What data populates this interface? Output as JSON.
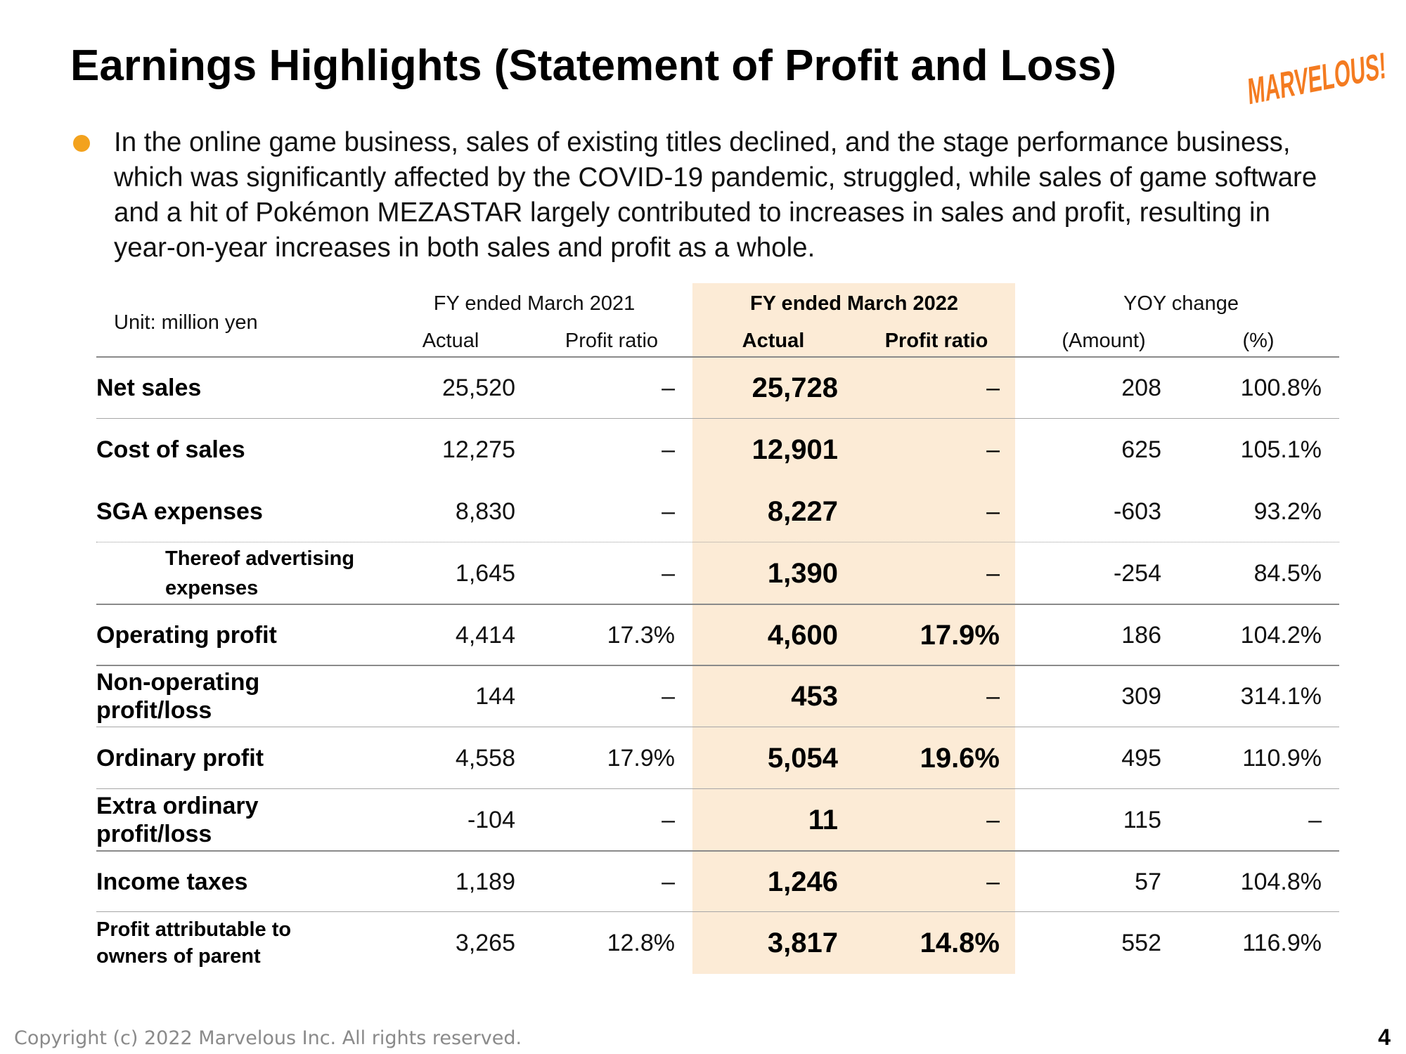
{
  "title": "Earnings Highlights (Statement of Profit and Loss)",
  "logo_text": "MARVELOUS!",
  "brand_color": "#F47B20",
  "bullet_color": "#F3A21D",
  "highlight_color": "#FCEBD6",
  "bullet_text": "In the online game business, sales of existing titles declined, and the stage performance business, which was significantly affected by the COVID-19 pandemic, struggled, while sales of game software and a hit of Pokémon MEZASTAR largely contributed to increases in sales and profit, resulting in year-on-year increases in both sales and profit as a whole.",
  "table": {
    "unit": "Unit: million yen",
    "fy2021": "FY ended March 2021",
    "fy2022": "FY ended March 2022",
    "yoy": "YOY change",
    "actual": "Actual",
    "profit_ratio": "Profit ratio",
    "amount": "(Amount)",
    "percent": "(%)",
    "rows": [
      {
        "label": "Net sales",
        "a21": "25,520",
        "p21": "–",
        "a22": "25,728",
        "p22": "–",
        "yoy_amt": "208",
        "yoy_pct": "100.8%"
      },
      {
        "label": "Cost of sales",
        "a21": "12,275",
        "p21": "–",
        "a22": "12,901",
        "p22": "–",
        "yoy_amt": "625",
        "yoy_pct": "105.1%"
      },
      {
        "label": "SGA expenses",
        "a21": "8,830",
        "p21": "–",
        "a22": "8,227",
        "p22": "–",
        "yoy_amt": "-603",
        "yoy_pct": "93.2%"
      },
      {
        "label": "Thereof advertising expenses",
        "a21": "1,645",
        "p21": "–",
        "a22": "1,390",
        "p22": "–",
        "yoy_amt": "-254",
        "yoy_pct": "84.5%"
      },
      {
        "label": "Operating profit",
        "a21": "4,414",
        "p21": "17.3%",
        "a22": "4,600",
        "p22": "17.9%",
        "yoy_amt": "186",
        "yoy_pct": "104.2%"
      },
      {
        "label": "Non-operating profit/loss",
        "a21": "144",
        "p21": "–",
        "a22": "453",
        "p22": "–",
        "yoy_amt": "309",
        "yoy_pct": "314.1%"
      },
      {
        "label": "Ordinary profit",
        "a21": "4,558",
        "p21": "17.9%",
        "a22": "5,054",
        "p22": "19.6%",
        "yoy_amt": "495",
        "yoy_pct": "110.9%"
      },
      {
        "label": "Extra ordinary profit/loss",
        "a21": "-104",
        "p21": "–",
        "a22": "11",
        "p22": "–",
        "yoy_amt": "115",
        "yoy_pct": "–"
      },
      {
        "label": "Income taxes",
        "a21": "1,189",
        "p21": "–",
        "a22": "1,246",
        "p22": "–",
        "yoy_amt": "57",
        "yoy_pct": "104.8%"
      },
      {
        "label": "Profit attributable to owners of parent",
        "a21": "3,265",
        "p21": "12.8%",
        "a22": "3,817",
        "p22": "14.8%",
        "yoy_amt": "552",
        "yoy_pct": "116.9%"
      }
    ]
  },
  "footer": "Copyright (c) 2022 Marvelous Inc. All rights reserved.",
  "page_number": "4"
}
